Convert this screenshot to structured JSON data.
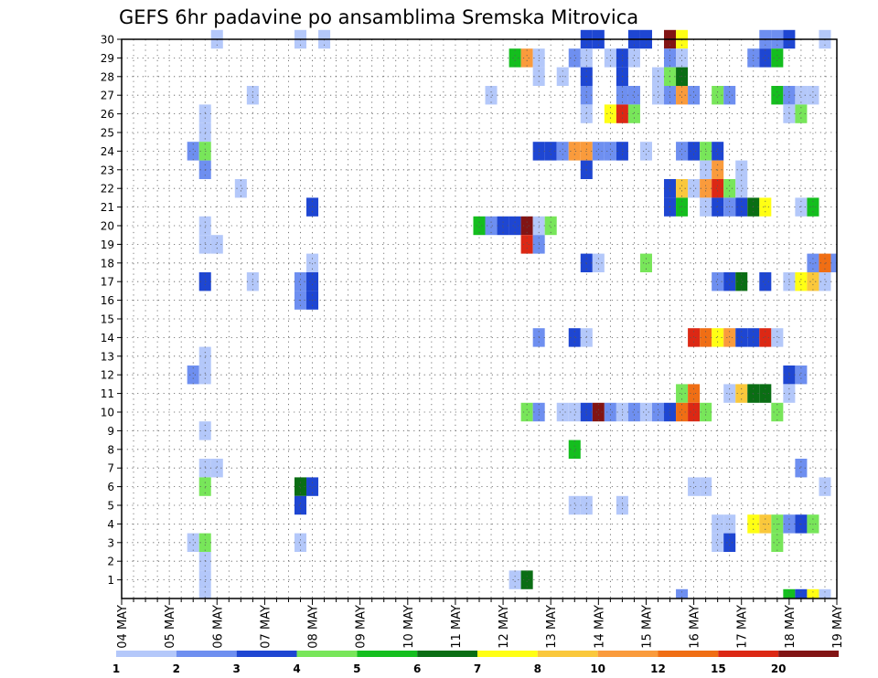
{
  "chart_data": {
    "type": "heatmap",
    "title": "GEFS 6hr padavine po ansamblima Sremska Mitrovica",
    "xlabel": "",
    "ylabel": "",
    "x_ticks": [
      "04 MAY",
      "05 MAY",
      "06 MAY",
      "07 MAY",
      "08 MAY",
      "09 MAY",
      "10 MAY",
      "11 MAY",
      "12 MAY",
      "13 MAY",
      "14 MAY",
      "15 MAY",
      "16 MAY",
      "17 MAY",
      "18 MAY",
      "19 MAY"
    ],
    "x_unit": "6-hour steps from 04 MAY",
    "xlim": [
      0,
      60
    ],
    "y_ticks": [
      "1",
      "2",
      "3",
      "4",
      "5",
      "6",
      "7",
      "8",
      "9",
      "10",
      "11",
      "12",
      "13",
      "14",
      "15",
      "16",
      "17",
      "18",
      "19",
      "20",
      "21",
      "22",
      "23",
      "24",
      "25",
      "26",
      "27",
      "28",
      "29",
      "30"
    ],
    "ylim": [
      0,
      30
    ],
    "grid": true,
    "legend": {
      "placement": "bottom",
      "labels": [
        "1",
        "2",
        "3",
        "4",
        "5",
        "6",
        "7",
        "8",
        "10",
        "12",
        "15",
        "20"
      ],
      "colors": [
        "#b4c8fa",
        "#6e8ff0",
        "#1e46d2",
        "#78e65a",
        "#14be1e",
        "#0a6e14",
        "#ffff14",
        "#fac83c",
        "#fa9b3c",
        "#f06e14",
        "#dc2814",
        "#821414"
      ]
    },
    "cells": [
      [
        8,
        30,
        0
      ],
      [
        15,
        30,
        0
      ],
      [
        17,
        30,
        0
      ],
      [
        39,
        30,
        2
      ],
      [
        40,
        30,
        2
      ],
      [
        43,
        30,
        2
      ],
      [
        44,
        30,
        2
      ],
      [
        46,
        30,
        11
      ],
      [
        47,
        30,
        6
      ],
      [
        54,
        30,
        1
      ],
      [
        55,
        30,
        1
      ],
      [
        56,
        30,
        2
      ],
      [
        59,
        30,
        0
      ],
      [
        33,
        29,
        4
      ],
      [
        34,
        29,
        8
      ],
      [
        35,
        29,
        0
      ],
      [
        38,
        29,
        1
      ],
      [
        39,
        29,
        0
      ],
      [
        41,
        29,
        0
      ],
      [
        42,
        29,
        2
      ],
      [
        43,
        29,
        0
      ],
      [
        46,
        29,
        1
      ],
      [
        47,
        29,
        0
      ],
      [
        53,
        29,
        1
      ],
      [
        54,
        29,
        2
      ],
      [
        55,
        29,
        4
      ],
      [
        35,
        28,
        0
      ],
      [
        37,
        28,
        0
      ],
      [
        39,
        28,
        2
      ],
      [
        42,
        28,
        2
      ],
      [
        45,
        28,
        0
      ],
      [
        46,
        28,
        3
      ],
      [
        47,
        28,
        5
      ],
      [
        11,
        27,
        0
      ],
      [
        31,
        27,
        0
      ],
      [
        39,
        27,
        1
      ],
      [
        42,
        27,
        1
      ],
      [
        43,
        27,
        1
      ],
      [
        45,
        27,
        0
      ],
      [
        46,
        27,
        1
      ],
      [
        47,
        27,
        8
      ],
      [
        48,
        27,
        1
      ],
      [
        50,
        27,
        3
      ],
      [
        51,
        27,
        1
      ],
      [
        55,
        27,
        4
      ],
      [
        56,
        27,
        1
      ],
      [
        57,
        27,
        0
      ],
      [
        58,
        27,
        0
      ],
      [
        7,
        26,
        0
      ],
      [
        39,
        26,
        0
      ],
      [
        41,
        26,
        6
      ],
      [
        42,
        26,
        10
      ],
      [
        43,
        26,
        3
      ],
      [
        56,
        26,
        0
      ],
      [
        57,
        26,
        3
      ],
      [
        7,
        25,
        0
      ],
      [
        6,
        24,
        1
      ],
      [
        7,
        24,
        3
      ],
      [
        35,
        24,
        2
      ],
      [
        36,
        24,
        2
      ],
      [
        37,
        24,
        1
      ],
      [
        38,
        24,
        8
      ],
      [
        39,
        24,
        8
      ],
      [
        40,
        24,
        1
      ],
      [
        41,
        24,
        1
      ],
      [
        42,
        24,
        2
      ],
      [
        44,
        24,
        0
      ],
      [
        47,
        24,
        1
      ],
      [
        48,
        24,
        2
      ],
      [
        49,
        24,
        3
      ],
      [
        50,
        24,
        2
      ],
      [
        7,
        23,
        1
      ],
      [
        39,
        23,
        2
      ],
      [
        49,
        23,
        0
      ],
      [
        50,
        23,
        8
      ],
      [
        52,
        23,
        0
      ],
      [
        10,
        22,
        0
      ],
      [
        46,
        22,
        2
      ],
      [
        47,
        22,
        7
      ],
      [
        48,
        22,
        0
      ],
      [
        49,
        22,
        8
      ],
      [
        50,
        22,
        10
      ],
      [
        51,
        22,
        3
      ],
      [
        52,
        22,
        0
      ],
      [
        16,
        21,
        2
      ],
      [
        46,
        21,
        2
      ],
      [
        47,
        21,
        4
      ],
      [
        49,
        21,
        0
      ],
      [
        50,
        21,
        2
      ],
      [
        51,
        21,
        1
      ],
      [
        52,
        21,
        2
      ],
      [
        53,
        21,
        5
      ],
      [
        54,
        21,
        6
      ],
      [
        57,
        21,
        0
      ],
      [
        58,
        21,
        4
      ],
      [
        7,
        20,
        0
      ],
      [
        30,
        20,
        4
      ],
      [
        31,
        20,
        1
      ],
      [
        32,
        20,
        2
      ],
      [
        33,
        20,
        2
      ],
      [
        34,
        20,
        11
      ],
      [
        35,
        20,
        0
      ],
      [
        36,
        20,
        3
      ],
      [
        7,
        19,
        0
      ],
      [
        8,
        19,
        0
      ],
      [
        34,
        19,
        10
      ],
      [
        35,
        19,
        1
      ],
      [
        16,
        18,
        0
      ],
      [
        39,
        18,
        2
      ],
      [
        40,
        18,
        0
      ],
      [
        44,
        18,
        3
      ],
      [
        58,
        18,
        1
      ],
      [
        59,
        18,
        9
      ],
      [
        60,
        18,
        1
      ],
      [
        7,
        17,
        2
      ],
      [
        11,
        17,
        0
      ],
      [
        15,
        17,
        1
      ],
      [
        16,
        17,
        2
      ],
      [
        50,
        17,
        1
      ],
      [
        51,
        17,
        2
      ],
      [
        52,
        17,
        5
      ],
      [
        54,
        17,
        2
      ],
      [
        56,
        17,
        0
      ],
      [
        57,
        17,
        6
      ],
      [
        58,
        17,
        7
      ],
      [
        59,
        17,
        0
      ],
      [
        15,
        16,
        1
      ],
      [
        16,
        16,
        2
      ],
      [
        35,
        14,
        1
      ],
      [
        38,
        14,
        2
      ],
      [
        39,
        14,
        0
      ],
      [
        48,
        14,
        10
      ],
      [
        49,
        14,
        9
      ],
      [
        50,
        14,
        6
      ],
      [
        51,
        14,
        8
      ],
      [
        52,
        14,
        2
      ],
      [
        53,
        14,
        2
      ],
      [
        54,
        14,
        10
      ],
      [
        55,
        14,
        0
      ],
      [
        7,
        13,
        0
      ],
      [
        6,
        12,
        1
      ],
      [
        7,
        12,
        0
      ],
      [
        56,
        12,
        2
      ],
      [
        57,
        12,
        1
      ],
      [
        47,
        11,
        3
      ],
      [
        48,
        11,
        9
      ],
      [
        51,
        11,
        0
      ],
      [
        52,
        11,
        7
      ],
      [
        53,
        11,
        5
      ],
      [
        54,
        11,
        5
      ],
      [
        56,
        11,
        0
      ],
      [
        34,
        10,
        3
      ],
      [
        35,
        10,
        1
      ],
      [
        37,
        10,
        0
      ],
      [
        38,
        10,
        0
      ],
      [
        39,
        10,
        2
      ],
      [
        40,
        10,
        11
      ],
      [
        41,
        10,
        1
      ],
      [
        42,
        10,
        0
      ],
      [
        43,
        10,
        1
      ],
      [
        44,
        10,
        0
      ],
      [
        45,
        10,
        1
      ],
      [
        46,
        10,
        2
      ],
      [
        47,
        10,
        9
      ],
      [
        48,
        10,
        10
      ],
      [
        49,
        10,
        3
      ],
      [
        55,
        10,
        3
      ],
      [
        7,
        9,
        0
      ],
      [
        38,
        8,
        4
      ],
      [
        7,
        7,
        0
      ],
      [
        8,
        7,
        0
      ],
      [
        57,
        7,
        1
      ],
      [
        7,
        6,
        3
      ],
      [
        15,
        6,
        5
      ],
      [
        16,
        6,
        2
      ],
      [
        48,
        6,
        0
      ],
      [
        49,
        6,
        0
      ],
      [
        59,
        6,
        0
      ],
      [
        15,
        5,
        2
      ],
      [
        38,
        5,
        0
      ],
      [
        39,
        5,
        0
      ],
      [
        42,
        5,
        0
      ],
      [
        50,
        4,
        0
      ],
      [
        51,
        4,
        0
      ],
      [
        53,
        4,
        6
      ],
      [
        54,
        4,
        7
      ],
      [
        55,
        4,
        3
      ],
      [
        56,
        4,
        1
      ],
      [
        57,
        4,
        2
      ],
      [
        58,
        4,
        3
      ],
      [
        6,
        3,
        0
      ],
      [
        7,
        3,
        3
      ],
      [
        15,
        3,
        0
      ],
      [
        50,
        3,
        0
      ],
      [
        51,
        3,
        2
      ],
      [
        55,
        3,
        3
      ],
      [
        7,
        2,
        0
      ],
      [
        7,
        1,
        0
      ],
      [
        33,
        1,
        0
      ],
      [
        34,
        1,
        5
      ],
      [
        7,
        0,
        0
      ],
      [
        47,
        0,
        1
      ],
      [
        56,
        0,
        4
      ],
      [
        57,
        0,
        2
      ],
      [
        58,
        0,
        6
      ],
      [
        59,
        0,
        0
      ]
    ]
  }
}
